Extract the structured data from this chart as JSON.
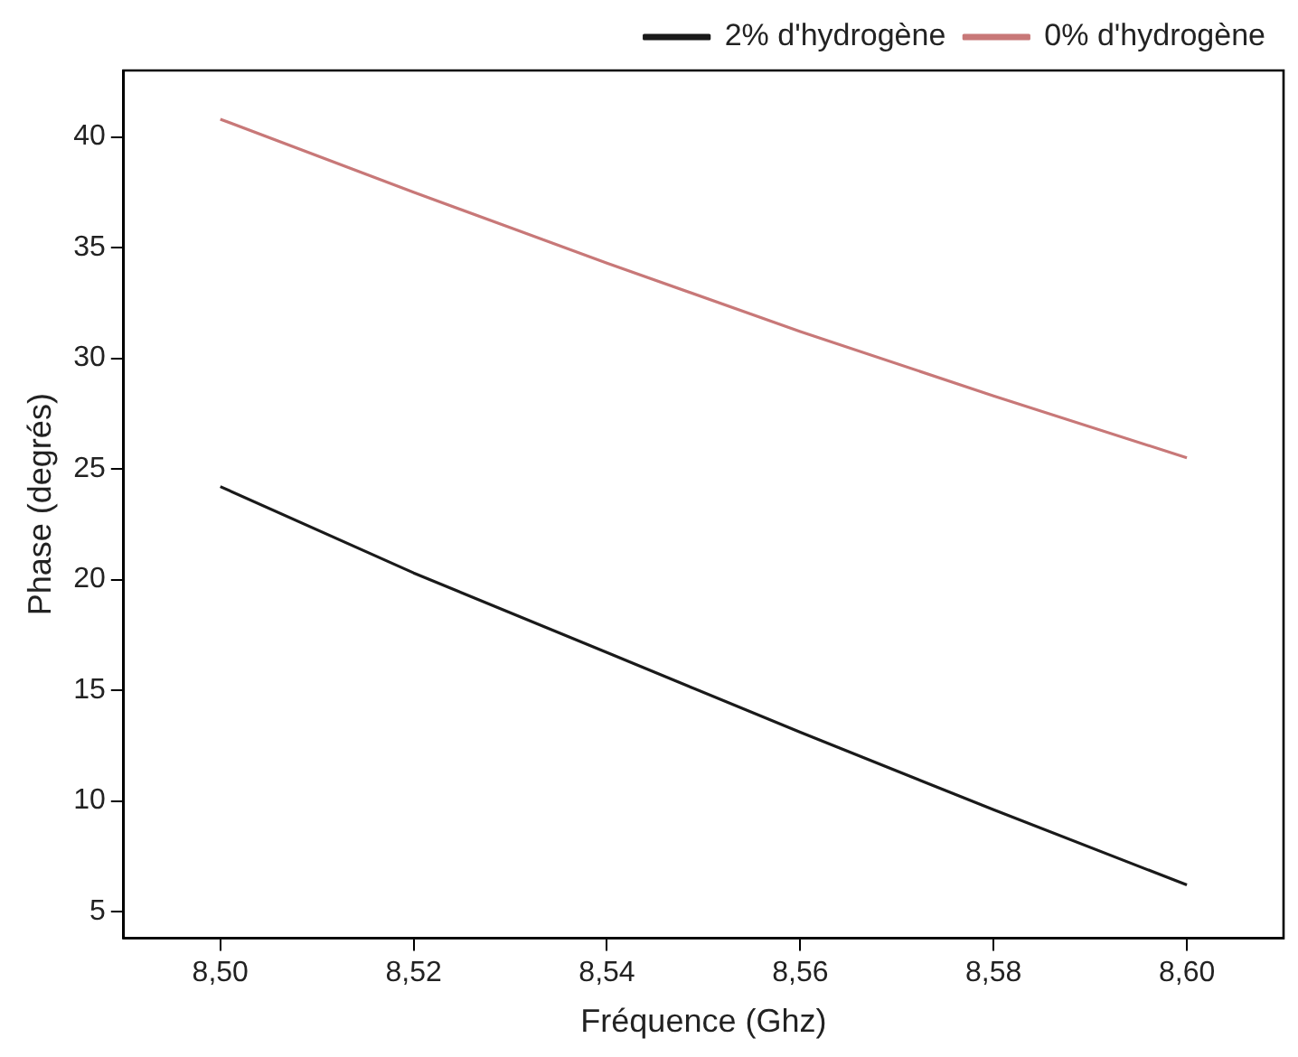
{
  "chart_data": {
    "type": "line",
    "xlabel": "Fréquence (Ghz)",
    "ylabel": "Phase (degrés)",
    "x": [
      8.5,
      8.52,
      8.54,
      8.56,
      8.58,
      8.6
    ],
    "series": [
      {
        "name": "2% d'hydrogène",
        "color": "#1a1a1a",
        "values": [
          24.2,
          20.3,
          16.7,
          13.1,
          9.6,
          6.2
        ]
      },
      {
        "name": "0% d'hydrogène",
        "color": "#c87878",
        "values": [
          40.8,
          37.5,
          34.3,
          31.2,
          28.3,
          25.5
        ]
      }
    ],
    "xlim": [
      8.49,
      8.61
    ],
    "ylim": [
      3.8,
      43
    ],
    "xticks": [
      {
        "value": 8.5,
        "label": "8,50"
      },
      {
        "value": 8.52,
        "label": "8,52"
      },
      {
        "value": 8.54,
        "label": "8,54"
      },
      {
        "value": 8.56,
        "label": "8,56"
      },
      {
        "value": 8.58,
        "label": "8,58"
      },
      {
        "value": 8.6,
        "label": "8,60"
      }
    ],
    "yticks": [
      5,
      10,
      15,
      20,
      25,
      30,
      35,
      40
    ],
    "grid": false,
    "legend": "top right",
    "marker": "none",
    "line_style": "solid"
  }
}
